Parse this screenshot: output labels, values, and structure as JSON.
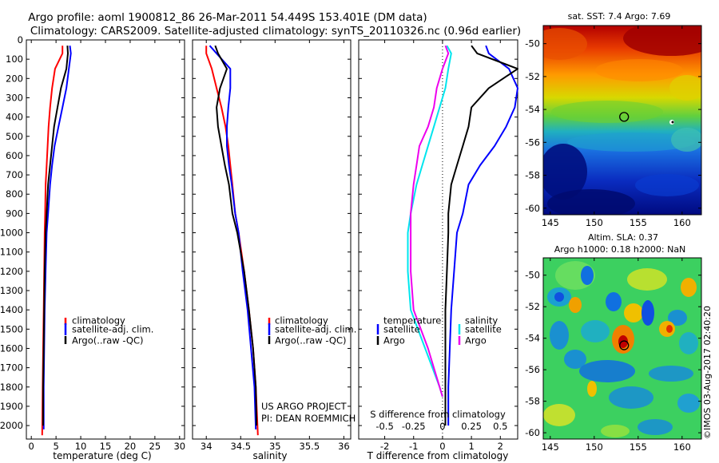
{
  "title_line1": "Argo profile: aoml 1900812_86 26-Mar-2011 54.449S 153.401E (DM data)",
  "title_line2": "Climatology: CARS2009. Satellite-adjusted climatology: synTS_20110326.nc (0.96d earlier)",
  "colors": {
    "climatology": "#ff0000",
    "satellite": "#0000ff",
    "argo": "#000000",
    "sal_satellite": "#00e5ee",
    "sal_argo": "#ee00ee"
  },
  "chart_data": [
    {
      "type": "line",
      "name": "temperature-profile",
      "xlabel": "temperature (deg C)",
      "xlim": [
        -1,
        31
      ],
      "xticks": [
        0,
        5,
        10,
        15,
        20,
        25,
        30
      ],
      "ylim": [
        0,
        2070
      ],
      "yticks": [
        0,
        100,
        200,
        300,
        400,
        500,
        600,
        700,
        800,
        900,
        1000,
        1100,
        1200,
        1300,
        1400,
        1500,
        1600,
        1700,
        1800,
        1900,
        2000
      ],
      "legend": [
        "climatology",
        "satellite-adj. clim.",
        "Argo(..raw -QC)"
      ],
      "series": [
        {
          "name": "climatology",
          "color_key": "climatology",
          "x": [
            6.3,
            6.3,
            4.8,
            4.2,
            3.8,
            3.5,
            3.3,
            3.1,
            2.9,
            2.8,
            2.7,
            2.6,
            2.5,
            2.4,
            2.3,
            2.2
          ],
          "y": [
            30,
            70,
            150,
            250,
            350,
            450,
            550,
            650,
            750,
            900,
            1000,
            1200,
            1400,
            1600,
            1800,
            2050
          ]
        },
        {
          "name": "satellite-adj. clim.",
          "color_key": "satellite",
          "x": [
            7.8,
            8.0,
            7.6,
            7.1,
            6.3,
            5.5,
            4.7,
            4.2,
            3.8,
            3.4,
            3.1,
            2.9,
            2.7,
            2.6,
            2.5,
            2.5
          ],
          "y": [
            30,
            70,
            150,
            250,
            350,
            450,
            550,
            650,
            750,
            900,
            1000,
            1200,
            1400,
            1600,
            1800,
            2020
          ]
        },
        {
          "name": "Argo(..raw -QC)",
          "color_key": "argo",
          "x": [
            7.3,
            7.4,
            7.1,
            6.0,
            5.3,
            4.6,
            4.2,
            3.8,
            3.4,
            3.1,
            2.9,
            2.7,
            2.6,
            2.5,
            2.4,
            2.4
          ],
          "y": [
            30,
            70,
            150,
            250,
            350,
            450,
            550,
            650,
            750,
            900,
            1000,
            1200,
            1400,
            1600,
            1800,
            2000
          ]
        }
      ]
    },
    {
      "type": "line",
      "name": "salinity-profile",
      "xlabel": "salinity",
      "xlim": [
        33.8,
        36.1
      ],
      "xticks": [
        34,
        34.5,
        35,
        35.5,
        36
      ],
      "ylim": [
        0,
        2070
      ],
      "legend": [
        "climatology",
        "satellite-adj. clim.",
        "Argo(..raw -QC)"
      ],
      "annotation_lines": [
        "US ARGO PROJECT",
        "PI: DEAN ROEMMICH"
      ],
      "series": [
        {
          "name": "climatology",
          "color_key": "climatology",
          "x": [
            34.0,
            34.0,
            34.08,
            34.15,
            34.22,
            34.28,
            34.32,
            34.35,
            34.38,
            34.42,
            34.47,
            34.55,
            34.62,
            34.68,
            34.72,
            34.75
          ],
          "y": [
            30,
            70,
            150,
            250,
            350,
            450,
            550,
            650,
            750,
            900,
            1000,
            1200,
            1400,
            1600,
            1800,
            2050
          ]
        },
        {
          "name": "satellite-adj. clim.",
          "color_key": "satellite",
          "x": [
            34.05,
            34.15,
            34.35,
            34.35,
            34.32,
            34.3,
            34.3,
            34.33,
            34.37,
            34.42,
            34.47,
            34.53,
            34.6,
            34.65,
            34.7,
            34.72
          ],
          "y": [
            30,
            70,
            150,
            250,
            350,
            450,
            550,
            650,
            750,
            900,
            1000,
            1200,
            1400,
            1600,
            1800,
            2020
          ]
        },
        {
          "name": "Argo(..raw -QC)",
          "color_key": "argo",
          "x": [
            34.13,
            34.17,
            34.3,
            34.2,
            34.15,
            34.17,
            34.22,
            34.27,
            34.33,
            34.38,
            34.45,
            34.55,
            34.62,
            34.68,
            34.72,
            34.73
          ],
          "y": [
            30,
            70,
            150,
            250,
            350,
            450,
            550,
            650,
            750,
            900,
            1000,
            1200,
            1400,
            1600,
            1800,
            2000
          ]
        }
      ]
    },
    {
      "type": "line",
      "name": "difference-profile",
      "xlabel": "T difference from climatology",
      "xlabel_top": "S difference from climatology",
      "xlim": [
        -2.9,
        2.6
      ],
      "xticks": [
        -2,
        -1,
        0,
        1,
        2
      ],
      "xticks_S": [
        -0.5,
        -0.25,
        0,
        0.25,
        0.5
      ],
      "ylim": [
        0,
        2070
      ],
      "legend_temperature_title": "temperature",
      "legend_salinity_title": "salinity",
      "legend_temperature": [
        "satellite",
        "Argo"
      ],
      "legend_salinity": [
        "satellite",
        "Argo"
      ],
      "series": [
        {
          "name": "temperature satellite",
          "color_key": "satellite",
          "x": [
            1.5,
            1.6,
            2.3,
            2.6,
            2.5,
            2.2,
            1.8,
            1.3,
            0.9,
            0.7,
            0.5,
            0.4,
            0.3,
            0.25,
            0.2,
            0.2
          ],
          "y": [
            30,
            70,
            150,
            250,
            350,
            450,
            550,
            650,
            750,
            900,
            1000,
            1200,
            1400,
            1600,
            1800,
            2000
          ]
        },
        {
          "name": "temperature Argo",
          "color_key": "argo",
          "x": [
            1.0,
            1.2,
            2.6,
            1.6,
            1.0,
            0.9,
            0.7,
            0.5,
            0.3,
            0.2,
            0.2,
            0.15,
            0.1,
            0.1,
            0.1,
            0.1
          ],
          "y": [
            30,
            70,
            150,
            250,
            350,
            450,
            550,
            650,
            750,
            900,
            1000,
            1200,
            1400,
            1600,
            1800,
            2000
          ]
        },
        {
          "name": "salinity satellite",
          "color_key": "sal_satellite",
          "x": [
            0.15,
            0.3,
            0.2,
            0.1,
            -0.1,
            -0.3,
            -0.5,
            -0.7,
            -0.9,
            -1.1,
            -1.2,
            -1.2,
            -1.1,
            -0.6,
            -0.1,
            0.0
          ],
          "y": [
            30,
            70,
            150,
            250,
            350,
            450,
            550,
            650,
            750,
            900,
            1000,
            1200,
            1400,
            1600,
            1800,
            1850
          ]
        },
        {
          "name": "salinity Argo",
          "color_key": "sal_argo",
          "x": [
            0.1,
            0.2,
            0.0,
            -0.2,
            -0.3,
            -0.5,
            -0.8,
            -0.9,
            -1.0,
            -1.1,
            -1.1,
            -1.1,
            -1.0,
            -0.5,
            -0.1,
            0.0
          ],
          "y": [
            30,
            70,
            150,
            250,
            350,
            450,
            550,
            650,
            750,
            900,
            1000,
            1200,
            1400,
            1600,
            1800,
            1850
          ]
        }
      ]
    },
    {
      "type": "heatmap",
      "name": "sst-map",
      "title": "sat. SST: 7.4 Argo: 7.69",
      "xlim": [
        144.2,
        162.2
      ],
      "ylim": [
        -60.4,
        -48.9
      ],
      "xticks": [
        145,
        150,
        155,
        160
      ],
      "yticks": [
        -50,
        -52,
        -54,
        -56,
        -58,
        -60
      ],
      "argo_position": [
        153.4,
        -54.45
      ]
    },
    {
      "type": "heatmap",
      "name": "sla-map",
      "title_line1": "Altim. SLA: 0.37",
      "title_line2": "Argo h1000: 0.18 h2000: NaN",
      "xlim": [
        144.2,
        162.2
      ],
      "ylim": [
        -60.4,
        -48.9
      ],
      "xticks": [
        145,
        150,
        155,
        160
      ],
      "yticks": [
        -50,
        -52,
        -54,
        -56,
        -58,
        -60
      ],
      "argo_position": [
        153.4,
        -54.45
      ]
    }
  ],
  "side_stamp": "©IMOS 03-Aug-2017 02:40:20"
}
